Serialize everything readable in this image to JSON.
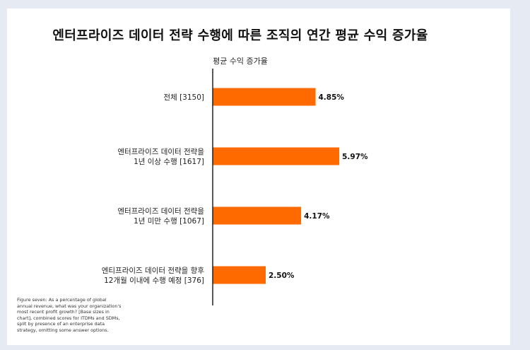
{
  "chart_data": {
    "type": "bar",
    "orientation": "horizontal",
    "title": "엔터프라이즈 데이터 전략 수행에 따른 조직의 연간 평균 수익 증가율",
    "subtitle": "평균 수익 증가율",
    "categories": [
      [
        "전체 [3150]"
      ],
      [
        "엔터프라이즈 데이터 전략을",
        "1년 이상 수행 [1617]"
      ],
      [
        "엔터프라이즈 데이터 전략을",
        "1년 미만 수행 [1067]"
      ],
      [
        "엔티프라이즈 데이터 전략을 향후",
        "12개월 이내에 수행 예정 [376]"
      ]
    ],
    "values": [
      4.85,
      5.97,
      4.17,
      2.5
    ],
    "value_labels": [
      "4.85%",
      "5.97%",
      "4.17%",
      "2.50%"
    ],
    "xlim": [
      0,
      8
    ],
    "grid": false,
    "colors": {
      "bar": "#ff6a00",
      "axis": "#111111"
    }
  },
  "footnote": "Figure seven: As a percentage of global annual revenue, what was your organization's most recent profit growth? [Base sizes in chart], combined scores for ITDMs and SDMs, split by presence of an enterprise data strategy, omitting some answer options."
}
